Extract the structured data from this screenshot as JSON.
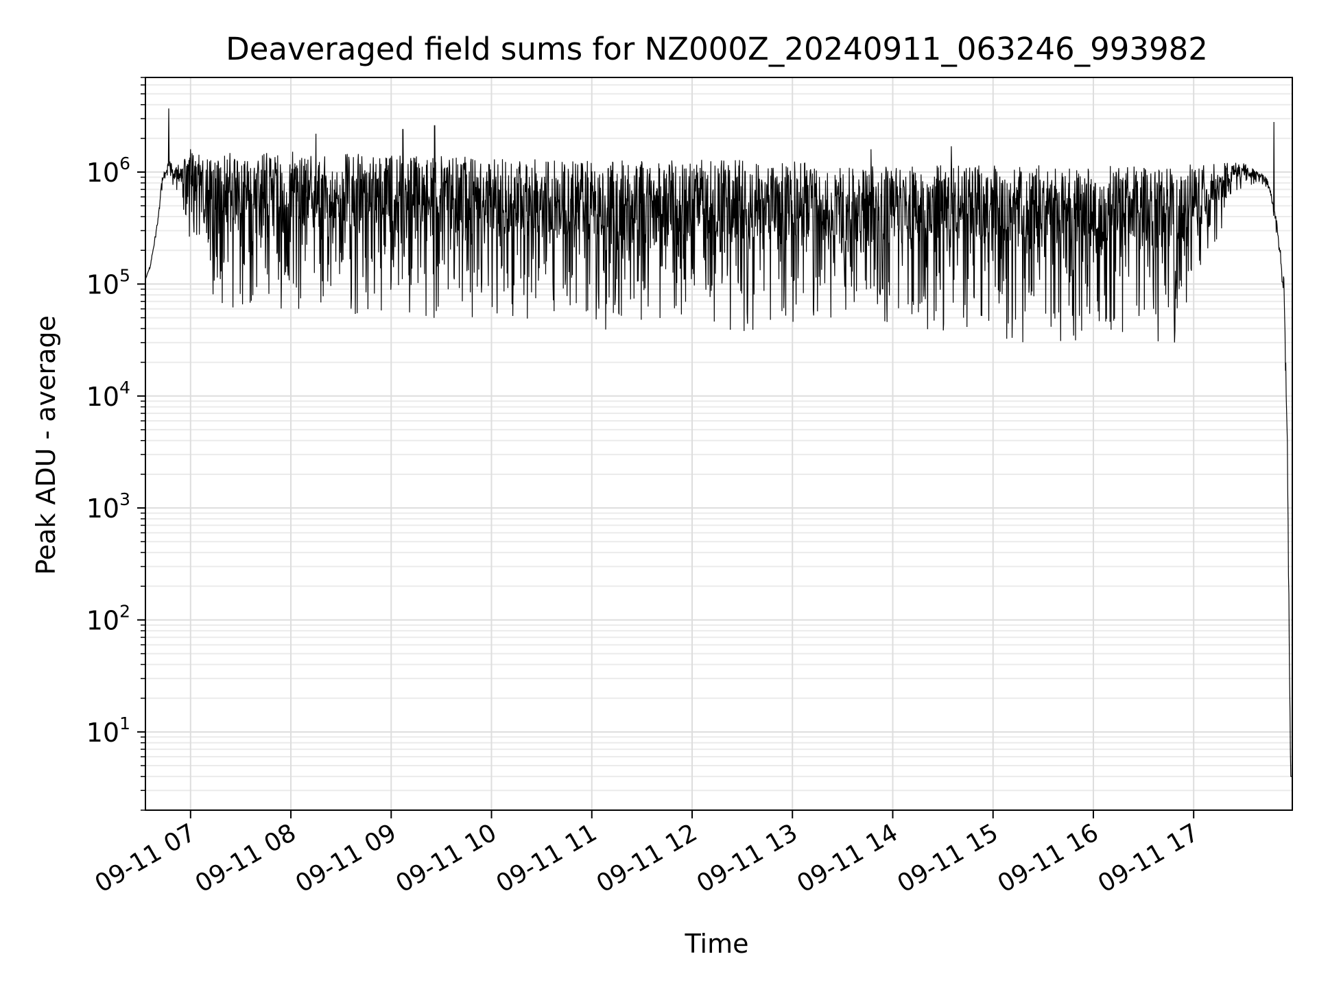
{
  "chart_data": {
    "type": "line",
    "title": "Deaveraged field sums for NZ000Z_20240911_063246_993982",
    "xlabel": "Time",
    "ylabel": "Peak ADU - average",
    "y_scale": "log",
    "grid": true,
    "grid_minor": true,
    "xlim": [
      "09-11 06:33",
      "09-11 17:59"
    ],
    "ylim": [
      2,
      7000000
    ],
    "x_ticks": [
      "09-11 07",
      "09-11 08",
      "09-11 09",
      "09-11 10",
      "09-11 11",
      "09-11 12",
      "09-11 13",
      "09-11 14",
      "09-11 15",
      "09-11 16",
      "09-11 17"
    ],
    "y_ticks": [
      {
        "base": "10",
        "exp": "1",
        "value": 10
      },
      {
        "base": "10",
        "exp": "2",
        "value": 100
      },
      {
        "base": "10",
        "exp": "3",
        "value": 1000
      },
      {
        "base": "10",
        "exp": "4",
        "value": 10000
      },
      {
        "base": "10",
        "exp": "5",
        "value": 100000
      },
      {
        "base": "10",
        "exp": "6",
        "value": 1000000
      }
    ],
    "line_color": "#000000",
    "series": [
      {
        "envelope": {
          "x": [
            "09-11 06:33",
            "09-11 06:36",
            "09-11 06:40",
            "09-11 06:43",
            "09-11 06:47",
            "09-11 06:50",
            "09-11 06:53",
            "09-11 06:56",
            "09-11 07:00",
            "09-11 07:05",
            "09-11 07:10",
            "09-11 07:20",
            "09-11 07:40",
            "09-11 08:00",
            "09-11 08:30",
            "09-11 09:00",
            "09-11 09:30",
            "09-11 10:00",
            "09-11 10:30",
            "09-11 11:00",
            "09-11 11:30",
            "09-11 12:00",
            "09-11 12:30",
            "09-11 13:00",
            "09-11 13:30",
            "09-11 14:00",
            "09-11 14:30",
            "09-11 15:00",
            "09-11 15:10",
            "09-11 15:30",
            "09-11 16:00",
            "09-11 16:30",
            "09-11 16:50",
            "09-11 17:00",
            "09-11 17:10",
            "09-11 17:20",
            "09-11 17:30",
            "09-11 17:40",
            "09-11 17:45",
            "09-11 17:50",
            "09-11 17:54",
            "09-11 17:56",
            "09-11 17:58",
            "09-11 17:59"
          ],
          "low": [
            110000,
            140000,
            300000,
            700000,
            900000,
            600000,
            500000,
            300000,
            150000,
            90000,
            65000,
            55000,
            50000,
            48000,
            46000,
            45000,
            43000,
            40000,
            38000,
            37000,
            36000,
            36000,
            37000,
            36000,
            34000,
            32000,
            33000,
            33000,
            28000,
            27000,
            26000,
            26000,
            26000,
            45000,
            150000,
            400000,
            700000,
            800000,
            600000,
            250000,
            60000,
            2000,
            4,
            4
          ],
          "high": [
            110000,
            150000,
            350000,
            900000,
            1300000,
            1100000,
            1200000,
            1400000,
            1500000,
            1500000,
            1500000,
            1550000,
            1550000,
            1550000,
            1500000,
            1450000,
            1400000,
            1350000,
            1300000,
            1300000,
            1300000,
            1300000,
            1300000,
            1250000,
            1200000,
            1150000,
            1150000,
            1150000,
            1150000,
            1150000,
            1150000,
            1150000,
            1150000,
            1200000,
            1250000,
            1300000,
            1200000,
            1000000,
            850000,
            350000,
            120000,
            5000,
            4,
            4
          ]
        },
        "spikes": [
          {
            "x": "09-11 06:47",
            "y": 3700000
          },
          {
            "x": "09-11 07:00",
            "y": 1600000
          },
          {
            "x": "09-11 08:15",
            "y": 2200000
          },
          {
            "x": "09-11 09:07",
            "y": 2400000
          },
          {
            "x": "09-11 09:26",
            "y": 2600000
          },
          {
            "x": "09-11 13:47",
            "y": 1600000
          },
          {
            "x": "09-11 14:35",
            "y": 1700000
          },
          {
            "x": "09-11 17:48",
            "y": 2800000
          }
        ]
      }
    ]
  }
}
